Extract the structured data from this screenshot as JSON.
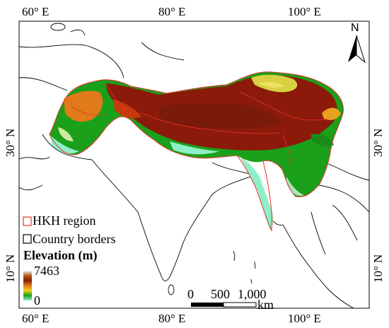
{
  "axes": {
    "top_longitudes": [
      "60° E",
      "80° E",
      "100° E"
    ],
    "bottom_longitudes": [
      "60° E",
      "80° E",
      "100° E"
    ],
    "left_latitudes": [
      "30° N",
      "10° N"
    ],
    "right_latitudes": [
      "30° N",
      "10° N"
    ]
  },
  "north_arrow": {
    "label": "N"
  },
  "legend": {
    "hkh_label": "HKH region",
    "borders_label": "Country borders",
    "elevation_title": "Elevation (m)",
    "elevation_max": "7463",
    "elevation_min": "0",
    "hkh_color": "#e8322a",
    "border_color": "#000000",
    "ramp_colors": [
      "#f2f2f2",
      "#b05a1a",
      "#8b1a0a",
      "#e07a1a",
      "#f0d020",
      "#1aa01a",
      "#8ef0c8"
    ]
  },
  "scale_bar": {
    "ticks": [
      "0",
      "500",
      "1,000"
    ],
    "unit": "km"
  }
}
